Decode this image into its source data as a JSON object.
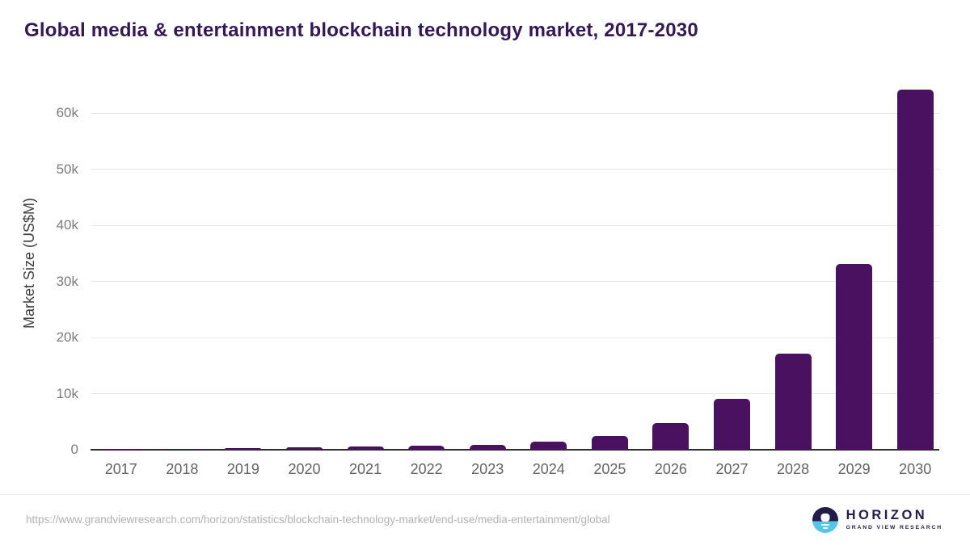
{
  "header": {
    "title": "Global media & entertainment blockchain technology market, 2017-2030"
  },
  "chart_data": {
    "type": "bar",
    "title": "Global media & entertainment blockchain technology market, 2017-2030",
    "categories": [
      "2017",
      "2018",
      "2019",
      "2020",
      "2021",
      "2022",
      "2023",
      "2024",
      "2025",
      "2026",
      "2027",
      "2028",
      "2029",
      "2030"
    ],
    "values": [
      30,
      90,
      280,
      450,
      560,
      700,
      860,
      1450,
      2500,
      4800,
      9050,
      17200,
      33200,
      64300
    ],
    "xlabel": "",
    "ylabel": "Market Size (US$M)",
    "ylim": [
      0,
      66400
    ],
    "ytick_values": [
      0,
      10000,
      20000,
      30000,
      40000,
      50000,
      60000
    ],
    "ytick_labels": [
      "0",
      "10k",
      "20k",
      "30k",
      "40k",
      "50k",
      "60k"
    ],
    "grid": true,
    "legend": false,
    "bar_color": "#4a1161"
  },
  "footer": {
    "source_url": "https://www.grandviewresearch.com/horizon/statistics/blockchain-technology-market/end-use/media-entertainment/global",
    "logo": {
      "name": "HORIZON",
      "subtitle": "GRAND VIEW RESEARCH",
      "icon": "horizon-sunset-circle-icon",
      "navy": "#241b49",
      "blue": "#56c6e8"
    }
  },
  "colors": {
    "title": "#331855",
    "bar": "#4a1161",
    "gridline": "#e9e9e9",
    "zero_axis": "#2b2b2b",
    "y_tick": "#7b7b7b",
    "x_tick": "#646464",
    "axis_title": "#3f3f3f",
    "url_text": "#b2b2b2"
  }
}
